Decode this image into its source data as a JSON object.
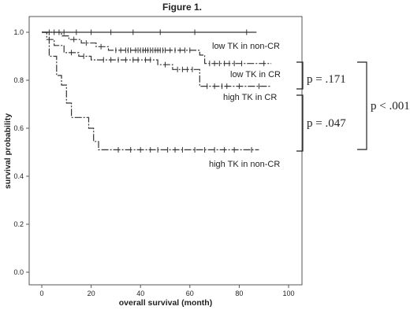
{
  "chart_data": {
    "type": "line",
    "title": "Figure 1.",
    "xlabel": "overall survival (month)",
    "ylabel": "survival probability",
    "xlim": [
      -5,
      103
    ],
    "ylim": [
      -0.02,
      1.03
    ],
    "x_ticks": [
      "0",
      "20",
      "40",
      "60",
      "80",
      "100"
    ],
    "y_ticks": [
      "0.0",
      "0.2",
      "0.4",
      "0.6",
      "0.8",
      "1.0"
    ],
    "series": [
      {
        "name": "low TK in non-CR",
        "dash": "none",
        "steps": [
          [
            0,
            1.0
          ],
          [
            87,
            1.0
          ]
        ],
        "censored": [
          3,
          9,
          14,
          20,
          28,
          37,
          48,
          62,
          83
        ]
      },
      {
        "name": "low TK in CR",
        "dash": "9,2,2,2",
        "steps": [
          [
            0,
            1.0
          ],
          [
            8,
            1.0
          ],
          [
            8,
            0.985
          ],
          [
            11,
            0.985
          ],
          [
            11,
            0.97
          ],
          [
            16,
            0.97
          ],
          [
            16,
            0.955
          ],
          [
            22,
            0.955
          ],
          [
            22,
            0.94
          ],
          [
            27,
            0.94
          ],
          [
            27,
            0.925
          ],
          [
            64,
            0.925
          ],
          [
            64,
            0.905
          ],
          [
            66,
            0.905
          ],
          [
            66,
            0.87
          ],
          [
            93,
            0.87
          ]
        ],
        "censored": [
          5,
          7,
          13,
          18,
          24,
          30,
          32,
          34,
          35,
          36,
          38,
          39,
          40,
          41,
          42,
          43,
          44,
          45,
          46,
          47,
          48,
          49,
          50,
          52,
          54,
          56,
          58,
          60,
          68,
          70,
          72,
          74,
          76,
          78,
          81,
          90
        ]
      },
      {
        "name": "high TK in CR",
        "dash": "9,2,2,2",
        "steps": [
          [
            0,
            1.0
          ],
          [
            2,
            1.0
          ],
          [
            2,
            0.97
          ],
          [
            5,
            0.97
          ],
          [
            5,
            0.945
          ],
          [
            9,
            0.945
          ],
          [
            9,
            0.915
          ],
          [
            15,
            0.915
          ],
          [
            15,
            0.9
          ],
          [
            20,
            0.9
          ],
          [
            20,
            0.885
          ],
          [
            47,
            0.885
          ],
          [
            47,
            0.865
          ],
          [
            53,
            0.865
          ],
          [
            53,
            0.845
          ],
          [
            64,
            0.845
          ],
          [
            64,
            0.775
          ],
          [
            93,
            0.775
          ]
        ],
        "censored": [
          12,
          17,
          25,
          28,
          31,
          34,
          37,
          39,
          42,
          44,
          50,
          55,
          57,
          59,
          61,
          67,
          70,
          73,
          75,
          80,
          88
        ]
      },
      {
        "name": "high TK in non-CR",
        "dash": "9,2,2,2",
        "steps": [
          [
            0,
            1.0
          ],
          [
            3,
            1.0
          ],
          [
            3,
            0.9
          ],
          [
            6,
            0.9
          ],
          [
            6,
            0.82
          ],
          [
            8,
            0.82
          ],
          [
            8,
            0.78
          ],
          [
            10,
            0.78
          ],
          [
            10,
            0.705
          ],
          [
            12,
            0.705
          ],
          [
            12,
            0.645
          ],
          [
            19,
            0.645
          ],
          [
            19,
            0.6
          ],
          [
            21,
            0.6
          ],
          [
            21,
            0.545
          ],
          [
            23,
            0.545
          ],
          [
            23,
            0.51
          ],
          [
            88,
            0.51
          ]
        ],
        "censored": [
          31,
          36,
          40,
          44,
          47,
          51,
          54,
          57,
          62,
          66,
          70,
          74,
          78,
          85
        ]
      }
    ],
    "brackets": [
      {
        "label": "p = .171",
        "between": [
          "low TK in CR",
          "high TK in CR"
        ]
      },
      {
        "label": "p = .047",
        "between": [
          "high TK in CR",
          "high TK in non-CR"
        ]
      },
      {
        "label": "p < .001",
        "between": [
          "low TK in CR",
          "high TK in non-CR"
        ]
      }
    ],
    "grid": false,
    "line_color": "#333333"
  }
}
